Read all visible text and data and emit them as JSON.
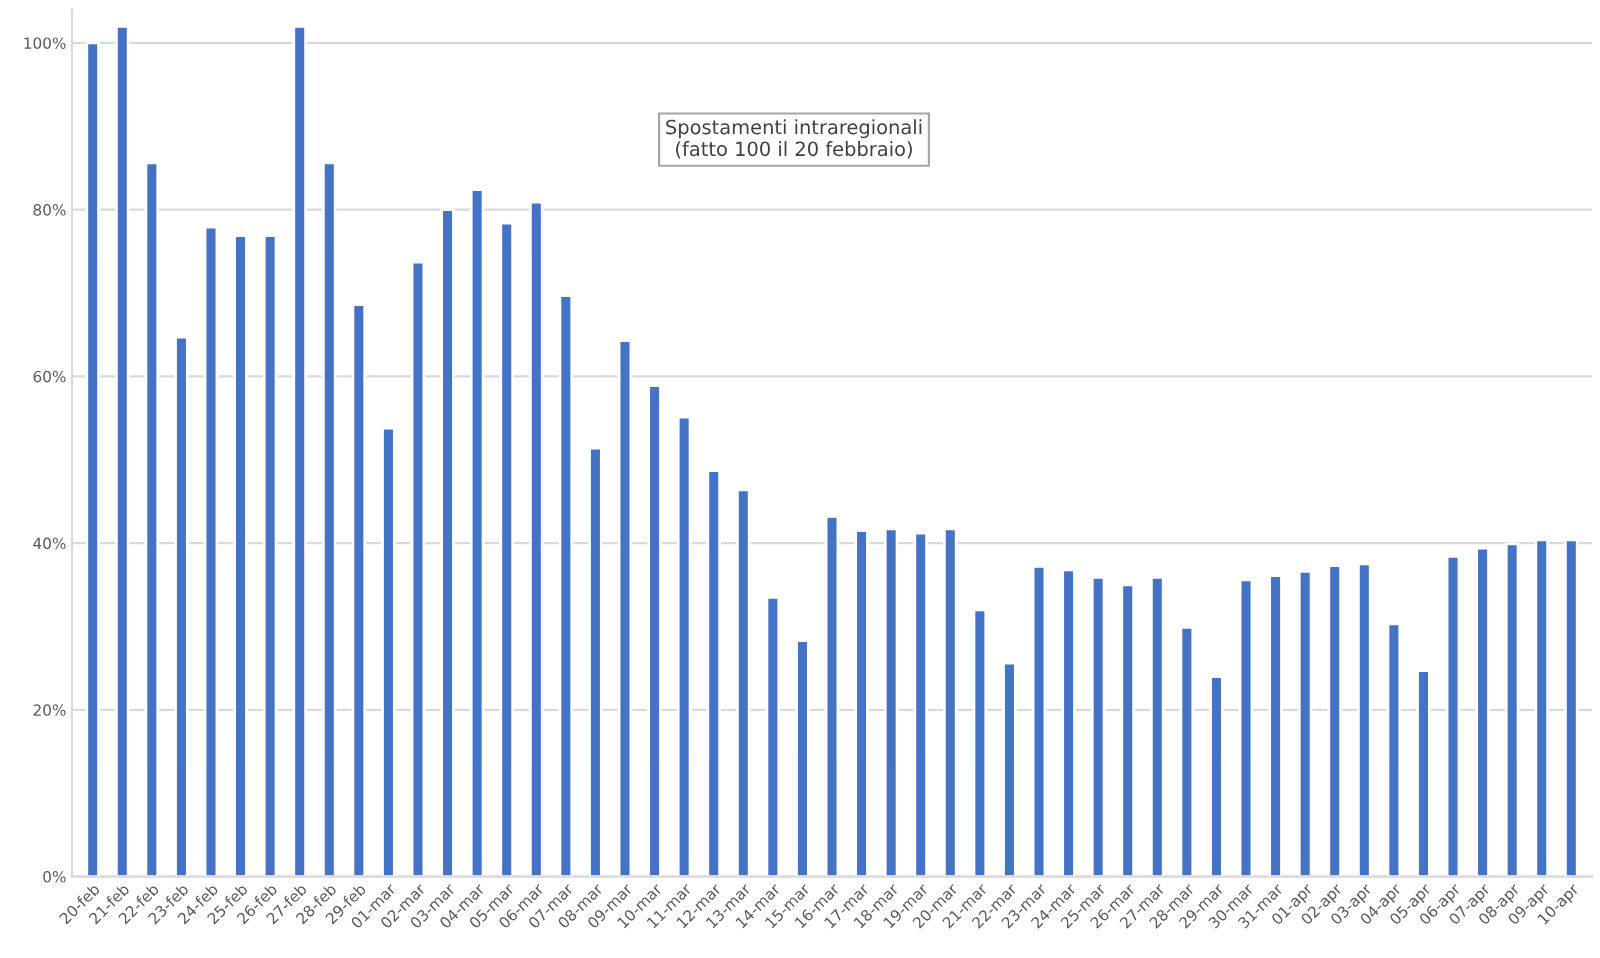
{
  "chart_data": {
    "type": "bar",
    "categories": [
      "20-feb",
      "21-feb",
      "22-feb",
      "23-feb",
      "24-feb",
      "25-feb",
      "26-feb",
      "27-feb",
      "28-feb",
      "29-feb",
      "01-mar",
      "02-mar",
      "03-mar",
      "04-mar",
      "05-mar",
      "06-mar",
      "07-mar",
      "08-mar",
      "09-mar",
      "10-mar",
      "11-mar",
      "12-mar",
      "13-mar",
      "14-mar",
      "15-mar",
      "16-mar",
      "17-mar",
      "18-mar",
      "19-mar",
      "20-mar",
      "21-mar",
      "22-mar",
      "23-mar",
      "24-mar",
      "25-mar",
      "26-mar",
      "27-mar",
      "28-mar",
      "29-mar",
      "30-mar",
      "31-mar",
      "01-apr",
      "02-apr",
      "03-apr",
      "04-apr",
      "05-apr",
      "06-apr",
      "07-apr",
      "08-apr",
      "09-apr",
      "10-apr"
    ],
    "values": [
      100,
      102,
      85.6,
      64.7,
      77.9,
      76.9,
      76.9,
      102,
      85.6,
      68.6,
      53.8,
      73.7,
      80,
      82.4,
      78.4,
      80.9,
      69.7,
      51.4,
      64.3,
      58.9,
      55.1,
      48.7,
      46.4,
      33.5,
      28.3,
      43.2,
      41.5,
      41.7,
      41.2,
      41.7,
      32,
      25.6,
      37.2,
      36.8,
      35.9,
      35,
      35.9,
      29.9,
      24,
      35.6,
      36.1,
      36.6,
      37.3,
      37.5,
      30.3,
      24.7,
      38.4,
      39.4,
      39.9,
      40.4,
      40.4
    ],
    "color": "#4472c4",
    "ylim": [
      0,
      104
    ],
    "yticks": [
      {
        "value": 0,
        "label": "0%"
      },
      {
        "value": 20,
        "label": "20%"
      },
      {
        "value": 40,
        "label": "40%"
      },
      {
        "value": 60,
        "label": "60%"
      },
      {
        "value": 80,
        "label": "80%"
      },
      {
        "value": 100,
        "label": "100%"
      }
    ],
    "grid": "y",
    "annotations": [
      "Spostamenti intraregionali\n(fatto 100 il 20 febbraio)"
    ]
  }
}
